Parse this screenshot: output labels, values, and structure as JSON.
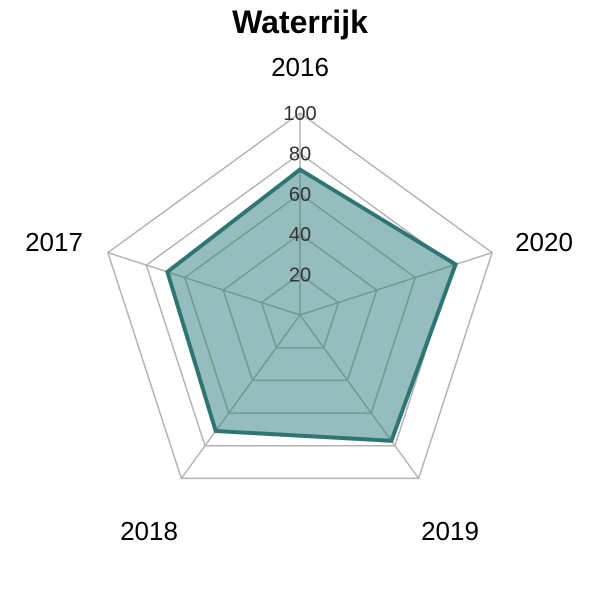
{
  "chart_data": {
    "type": "radar",
    "title": "Waterrijk",
    "axes": [
      "2016",
      "2020",
      "2019",
      "2018",
      "2017"
    ],
    "series": [
      {
        "values": [
          72,
          81,
          77,
          71,
          69
        ]
      }
    ],
    "range": [
      0,
      100
    ],
    "ticks": [
      20,
      40,
      60,
      80,
      100
    ],
    "grid": true,
    "colors": {
      "fill": "#2e7b7b",
      "stroke": "#2f7574",
      "grid": "#b3b3b3"
    }
  }
}
